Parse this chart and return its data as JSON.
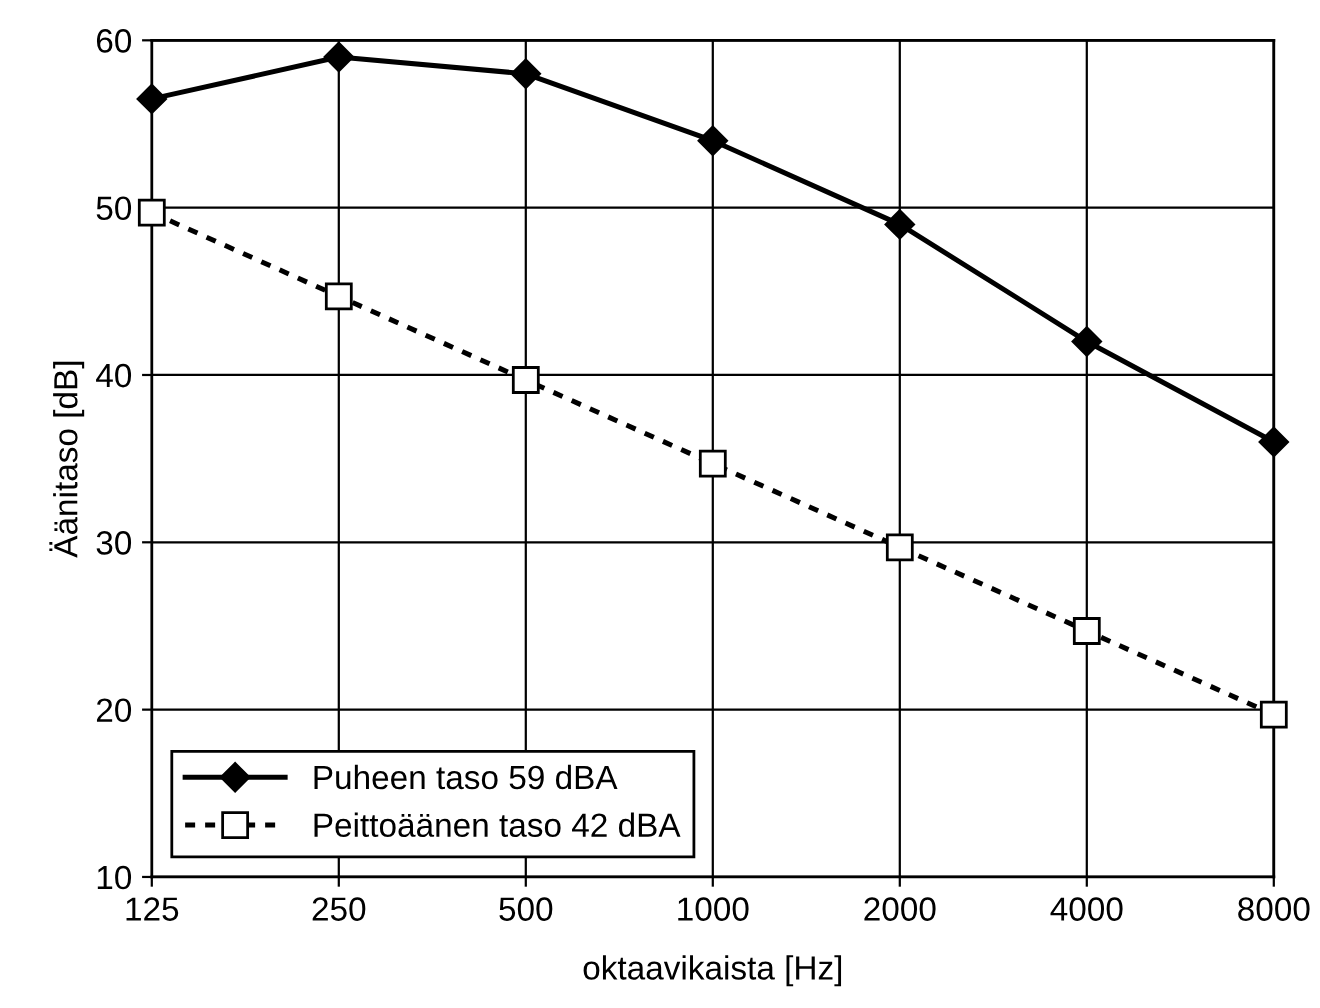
{
  "chart_data": {
    "type": "line",
    "xlabel": "oktaavikaista [Hz]",
    "ylabel": "Äänitaso [dB]",
    "categories": [
      "125",
      "250",
      "500",
      "1000",
      "2000",
      "4000",
      "8000"
    ],
    "series": [
      {
        "name": "Puheen taso 59 dBA",
        "color": "#000000",
        "marker": "diamond",
        "line_style": "solid",
        "values": [
          56.5,
          59,
          58,
          54,
          49,
          42,
          36
        ]
      },
      {
        "name": "Peittoäänen taso 42 dBA",
        "color": "#000000",
        "marker": "square",
        "line_style": "dotted",
        "values": [
          49.7,
          44.7,
          39.7,
          34.7,
          29.7,
          24.7,
          19.7
        ]
      }
    ],
    "ylim": [
      10,
      60
    ],
    "yticks": [
      10,
      20,
      30,
      40,
      50,
      60
    ],
    "grid": true,
    "legend": "bottom left"
  }
}
